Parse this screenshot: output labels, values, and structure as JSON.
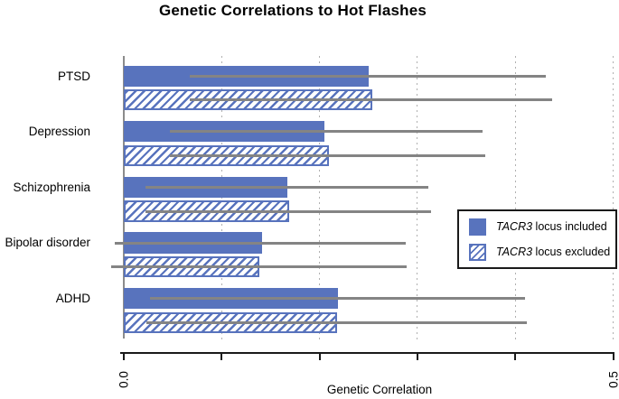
{
  "chart_data": {
    "type": "bar",
    "orientation": "horizontal",
    "title": "Genetic Correlations to Hot Flashes",
    "xlabel": "Genetic Correlation",
    "xlim": [
      0.0,
      0.5
    ],
    "xticks": [
      0.0,
      0.1,
      0.2,
      0.3,
      0.4,
      0.5
    ],
    "visible_xtick_labels": {
      "left": "0.0",
      "right": "0.5"
    },
    "grid": "vertical dotted gridlines at every 0.1",
    "legend_position": "middle-right",
    "categories": [
      "PTSD",
      "Depression",
      "Schizophrenia",
      "Bipolar disorder",
      "ADHD"
    ],
    "series": [
      {
        "name": "TACR3 locus included",
        "style": "solid",
        "values": [
          0.25,
          0.205,
          0.167,
          0.141,
          0.219
        ],
        "ci_low": [
          0.067,
          0.047,
          0.022,
          -0.009,
          0.027
        ],
        "ci_high": [
          0.431,
          0.367,
          0.311,
          0.288,
          0.41
        ]
      },
      {
        "name": "TACR3 locus excluded",
        "style": "hatched",
        "values": [
          0.254,
          0.21,
          0.169,
          0.138,
          0.218
        ],
        "ci_low": [
          0.067,
          0.047,
          0.022,
          -0.013,
          0.023
        ],
        "ci_high": [
          0.438,
          0.369,
          0.314,
          0.289,
          0.412
        ]
      }
    ]
  },
  "axis": {
    "tick_label_left": "0.0",
    "tick_label_right": "0.5",
    "xlabel": "Genetic Correlation"
  },
  "legend": {
    "items": [
      {
        "gene": "TACR3",
        "rest": " locus included",
        "swatch": "solid"
      },
      {
        "gene": "TACR3",
        "rest": " locus excluded",
        "swatch": "hatched"
      }
    ]
  },
  "colors": {
    "bar_fill": "#5873bd",
    "hatch_stripe": "#5873bd",
    "error_bar": "#848484",
    "gridline": "#b0b0b0",
    "y_axis_line": "#8c8c8c",
    "x_axis": "#1a1a1a",
    "legend_border": "#1a1a1a",
    "text": "#000000"
  }
}
